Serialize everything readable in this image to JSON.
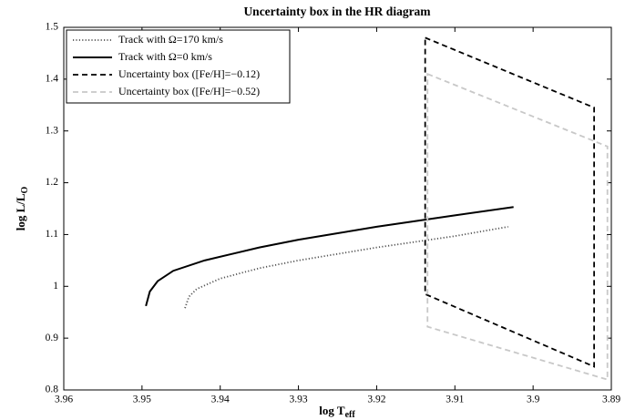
{
  "chart_data": {
    "type": "line",
    "title": "Uncertainty box in the HR diagram",
    "x_label": "log T",
    "x_label_sub": "eff",
    "y_label": "log L/L",
    "y_label_sub": "O",
    "xlim": [
      3.96,
      3.89
    ],
    "ylim": [
      0.8,
      1.5
    ],
    "xticks": [
      3.96,
      3.95,
      3.94,
      3.93,
      3.92,
      3.91,
      3.9,
      3.89
    ],
    "yticks": [
      0.8,
      0.9,
      1,
      1.1,
      1.2,
      1.3,
      1.4,
      1.5
    ],
    "legend": "upper-left",
    "series": [
      {
        "name": "Track with Ω=170 km/s",
        "color": "#555555",
        "style": "dotted",
        "closed": false,
        "x": [
          3.9445,
          3.944,
          3.943,
          3.94,
          3.935,
          3.93,
          3.92,
          3.91,
          3.9032
        ],
        "values": [
          0.958,
          0.98,
          0.995,
          1.015,
          1.035,
          1.05,
          1.075,
          1.097,
          1.115
        ]
      },
      {
        "name": "Track with Ω=0 km/s",
        "color": "#000000",
        "style": "solid",
        "closed": false,
        "x": [
          3.9495,
          3.949,
          3.948,
          3.946,
          3.942,
          3.935,
          3.93,
          3.92,
          3.91,
          3.9025
        ],
        "values": [
          0.962,
          0.99,
          1.01,
          1.03,
          1.05,
          1.075,
          1.09,
          1.115,
          1.137,
          1.153
        ]
      },
      {
        "name": "Uncertainty box ([Fe/H]=−0.12)",
        "color": "#000000",
        "style": "dashed",
        "closed": true,
        "x": [
          3.9138,
          3.8922,
          3.8922,
          3.9138
        ],
        "values": [
          1.48,
          1.345,
          0.845,
          0.985
        ]
      },
      {
        "name": "Uncertainty box ([Fe/H]=−0.52)",
        "color": "#c8c8c8",
        "style": "dashed",
        "closed": true,
        "x": [
          3.9135,
          3.8905,
          3.8905,
          3.9135
        ],
        "values": [
          1.41,
          1.27,
          0.82,
          0.922
        ]
      }
    ]
  }
}
